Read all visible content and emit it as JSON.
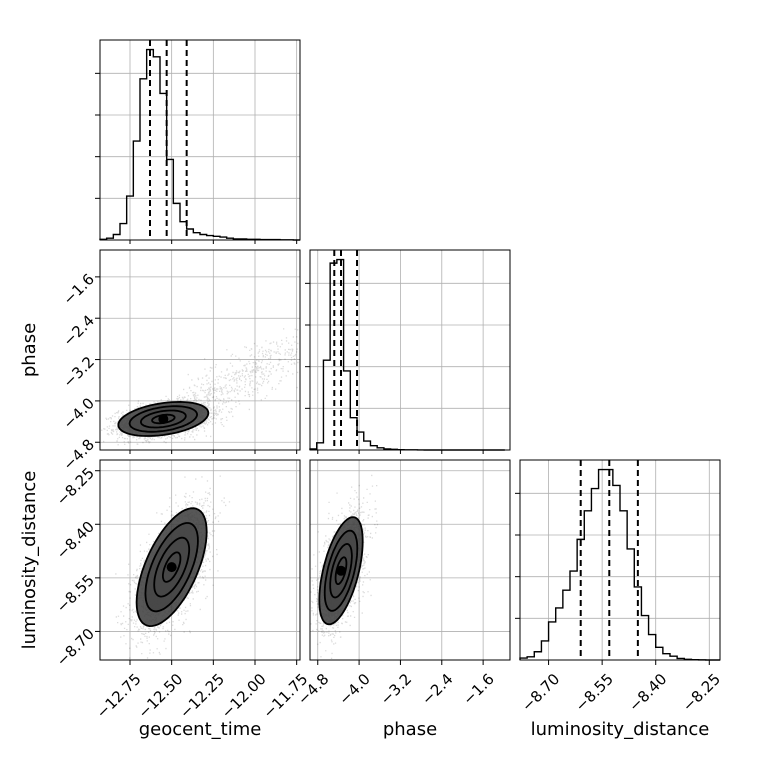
{
  "chart_data": {
    "type": "corner",
    "parameters": [
      "geocent_time",
      "phase",
      "luminosity_distance"
    ],
    "ranges": {
      "geocent_time": [
        -12.93,
        -11.73
      ],
      "phase": [
        -4.95,
        -1.08
      ],
      "luminosity_distance": [
        -8.78,
        -8.22
      ]
    },
    "ticks": {
      "geocent_time": {
        "values": [
          -12.75,
          -12.5,
          -12.25,
          -12.0,
          -11.75
        ],
        "labels": [
          "−12.75",
          "−12.50",
          "−12.25",
          "−12.00",
          "−11.75"
        ]
      },
      "phase_x": {
        "values": [
          -4.8,
          -4.0,
          -3.2,
          -2.4,
          -1.6
        ],
        "labels": [
          "−4.8",
          "−4.0",
          "−3.2",
          "−2.4",
          "−1.6"
        ]
      },
      "phase_y": {
        "values": [
          -1.6,
          -2.4,
          -3.2,
          -4.0,
          -4.8
        ],
        "labels": [
          "−1.6",
          "−2.4",
          "−3.2",
          "−4.0",
          "−4.8"
        ]
      },
      "luminosity_distance_x": {
        "values": [
          -8.7,
          -8.55,
          -8.4,
          -8.25
        ],
        "labels": [
          "−8.70",
          "−8.55",
          "−8.40",
          "−8.25"
        ]
      },
      "luminosity_distance_y": {
        "values": [
          -8.25,
          -8.4,
          -8.55,
          -8.7
        ],
        "labels": [
          "−8.25",
          "−8.40",
          "−8.55",
          "−8.70"
        ]
      }
    },
    "xlabels": [
      "geocent_time",
      "phase",
      "luminosity_distance"
    ],
    "ylabels": [
      "",
      "phase",
      "luminosity_distance"
    ],
    "histograms": {
      "geocent_time": {
        "edges": [
          -12.93,
          -12.89,
          -12.85,
          -12.81,
          -12.77,
          -12.73,
          -12.69,
          -12.65,
          -12.61,
          -12.57,
          -12.53,
          -12.49,
          -12.45,
          -12.41,
          -12.37,
          -12.33,
          -12.29,
          -12.25,
          -12.21,
          -12.17,
          -12.13,
          -12.09,
          -12.05,
          -12.01,
          -11.97,
          -11.93,
          -11.89,
          -11.85,
          -11.81,
          -11.77,
          -11.73
        ],
        "counts": [
          0.2,
          0.5,
          1.5,
          4.5,
          12,
          27,
          44,
          52,
          50,
          40,
          22,
          10,
          5,
          3,
          2,
          1.5,
          1.2,
          1,
          0.8,
          0.5,
          0.3,
          0.3,
          0.2,
          0.2,
          0.1,
          0.1,
          0.1,
          0.05,
          0.05,
          0
        ],
        "quantiles": [
          -12.63,
          -12.53,
          -12.41
        ]
      },
      "phase": {
        "edges": [
          -4.95,
          -4.82,
          -4.69,
          -4.56,
          -4.43,
          -4.3,
          -4.17,
          -4.04,
          -3.91,
          -3.78,
          -3.65,
          -3.52,
          -3.39,
          -3.26,
          -3.13,
          -3.0,
          -2.87,
          -2.74,
          -2.61,
          -2.48,
          -2.35,
          -2.22,
          -2.09,
          -1.96,
          -1.83,
          -1.7,
          -1.57,
          -1.44,
          -1.31,
          -1.18
        ],
        "counts": [
          0.3,
          2,
          25,
          52,
          53,
          22,
          9,
          5,
          2.5,
          1.2,
          0.6,
          0.3,
          0.2,
          0.1,
          0.05,
          0.05,
          0.02,
          0,
          0,
          0,
          0,
          0,
          0,
          0,
          0,
          0,
          0,
          0,
          0
        ],
        "quantiles": [
          -4.48,
          -4.35,
          -4.04
        ]
      },
      "luminosity_distance": {
        "edges": [
          -8.78,
          -8.76,
          -8.74,
          -8.72,
          -8.7,
          -8.68,
          -8.66,
          -8.64,
          -8.62,
          -8.6,
          -8.58,
          -8.56,
          -8.54,
          -8.52,
          -8.5,
          -8.48,
          -8.46,
          -8.44,
          -8.42,
          -8.4,
          -8.38,
          -8.36,
          -8.34,
          -8.32,
          -8.3,
          -8.28,
          -8.26,
          -8.24,
          -8.22
        ],
        "counts": [
          0.3,
          0.5,
          1.3,
          3,
          6,
          8.2,
          11,
          14,
          19,
          23.5,
          27,
          30,
          30,
          27.5,
          23.5,
          17.5,
          11.5,
          7,
          4,
          2,
          1,
          0.6,
          0.25,
          0.1,
          0.05,
          0.02,
          0,
          0
        ],
        "quantiles": [
          -8.61,
          -8.53,
          -8.45
        ]
      }
    },
    "joint": [
      {
        "x": "geocent_time",
        "y": "phase",
        "mean": [
          -12.55,
          -4.35
        ],
        "sd": [
          0.09,
          0.11
        ],
        "rho": 0.35,
        "tail": {
          "x": [
            -12.4,
            -11.75
          ],
          "y": [
            -4.1,
            -3.0
          ]
        }
      },
      {
        "x": "geocent_time",
        "y": "luminosity_distance",
        "mean": [
          -12.5,
          -8.52
        ],
        "sd": [
          0.07,
          0.055
        ],
        "rho": 0.6
      },
      {
        "x": "phase",
        "y": "luminosity_distance",
        "mean": [
          -4.35,
          -8.53
        ],
        "sd": [
          0.14,
          0.05
        ],
        "rho": 0.55
      }
    ],
    "contour_levels": [
      0.118,
      0.393,
      0.675,
      0.865
    ],
    "grid": true
  }
}
